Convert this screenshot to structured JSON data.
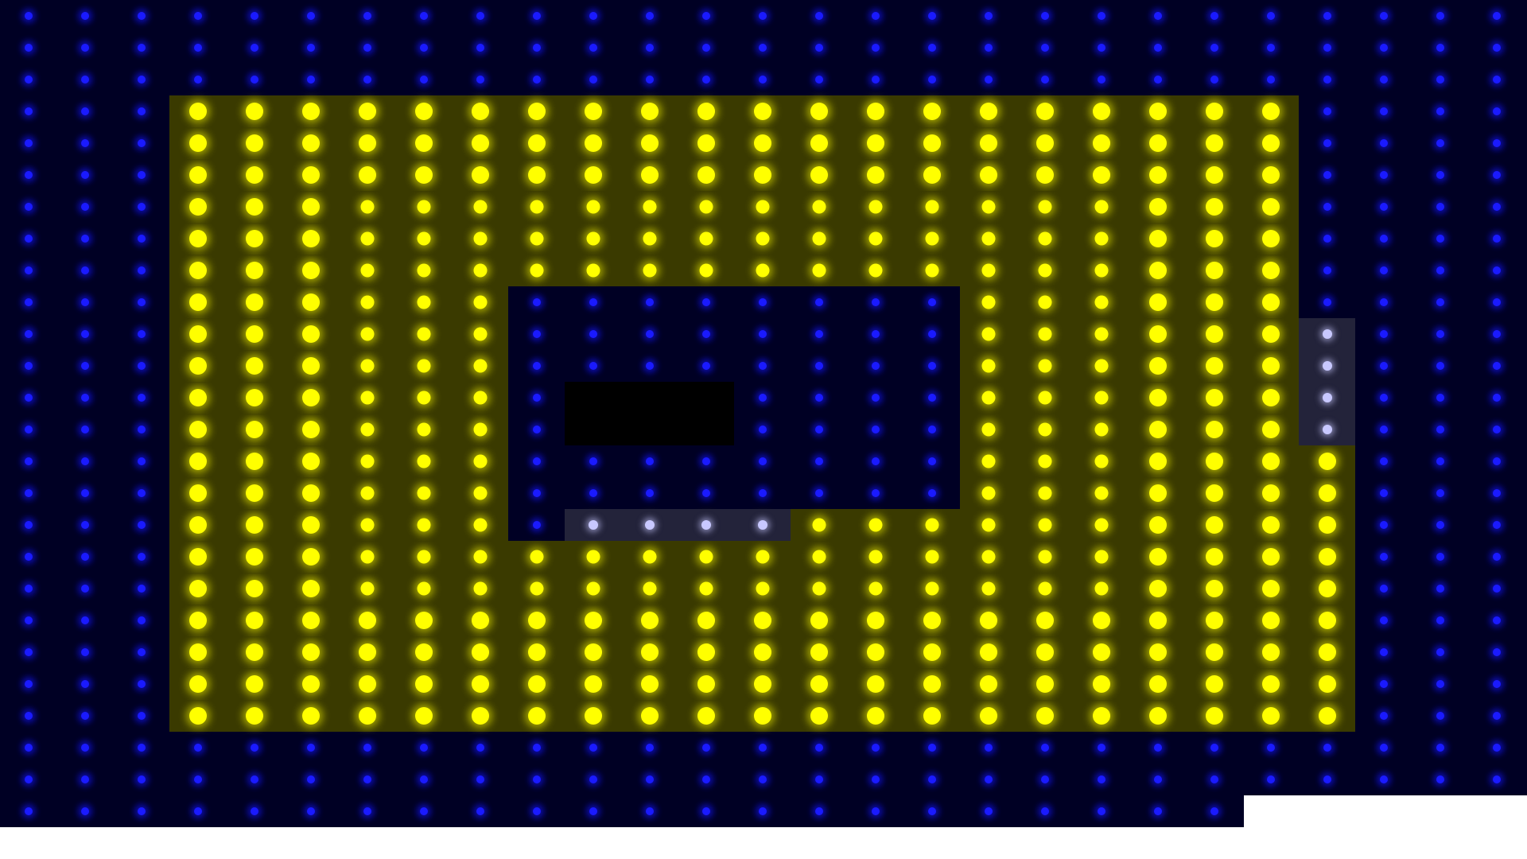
{
  "game": {
    "title": "",
    "grid_cols": 27,
    "grid_rows": 26,
    "colors": {
      "background": "#000024",
      "empty_dot": "#1a1aff",
      "lit_dot": "#ffff00",
      "lit_cell": "#3a3a00",
      "dark_cell": "#000000",
      "fading_dot": "#c8c8ff"
    },
    "legend_note": "",
    "layout_hint": ""
  }
}
